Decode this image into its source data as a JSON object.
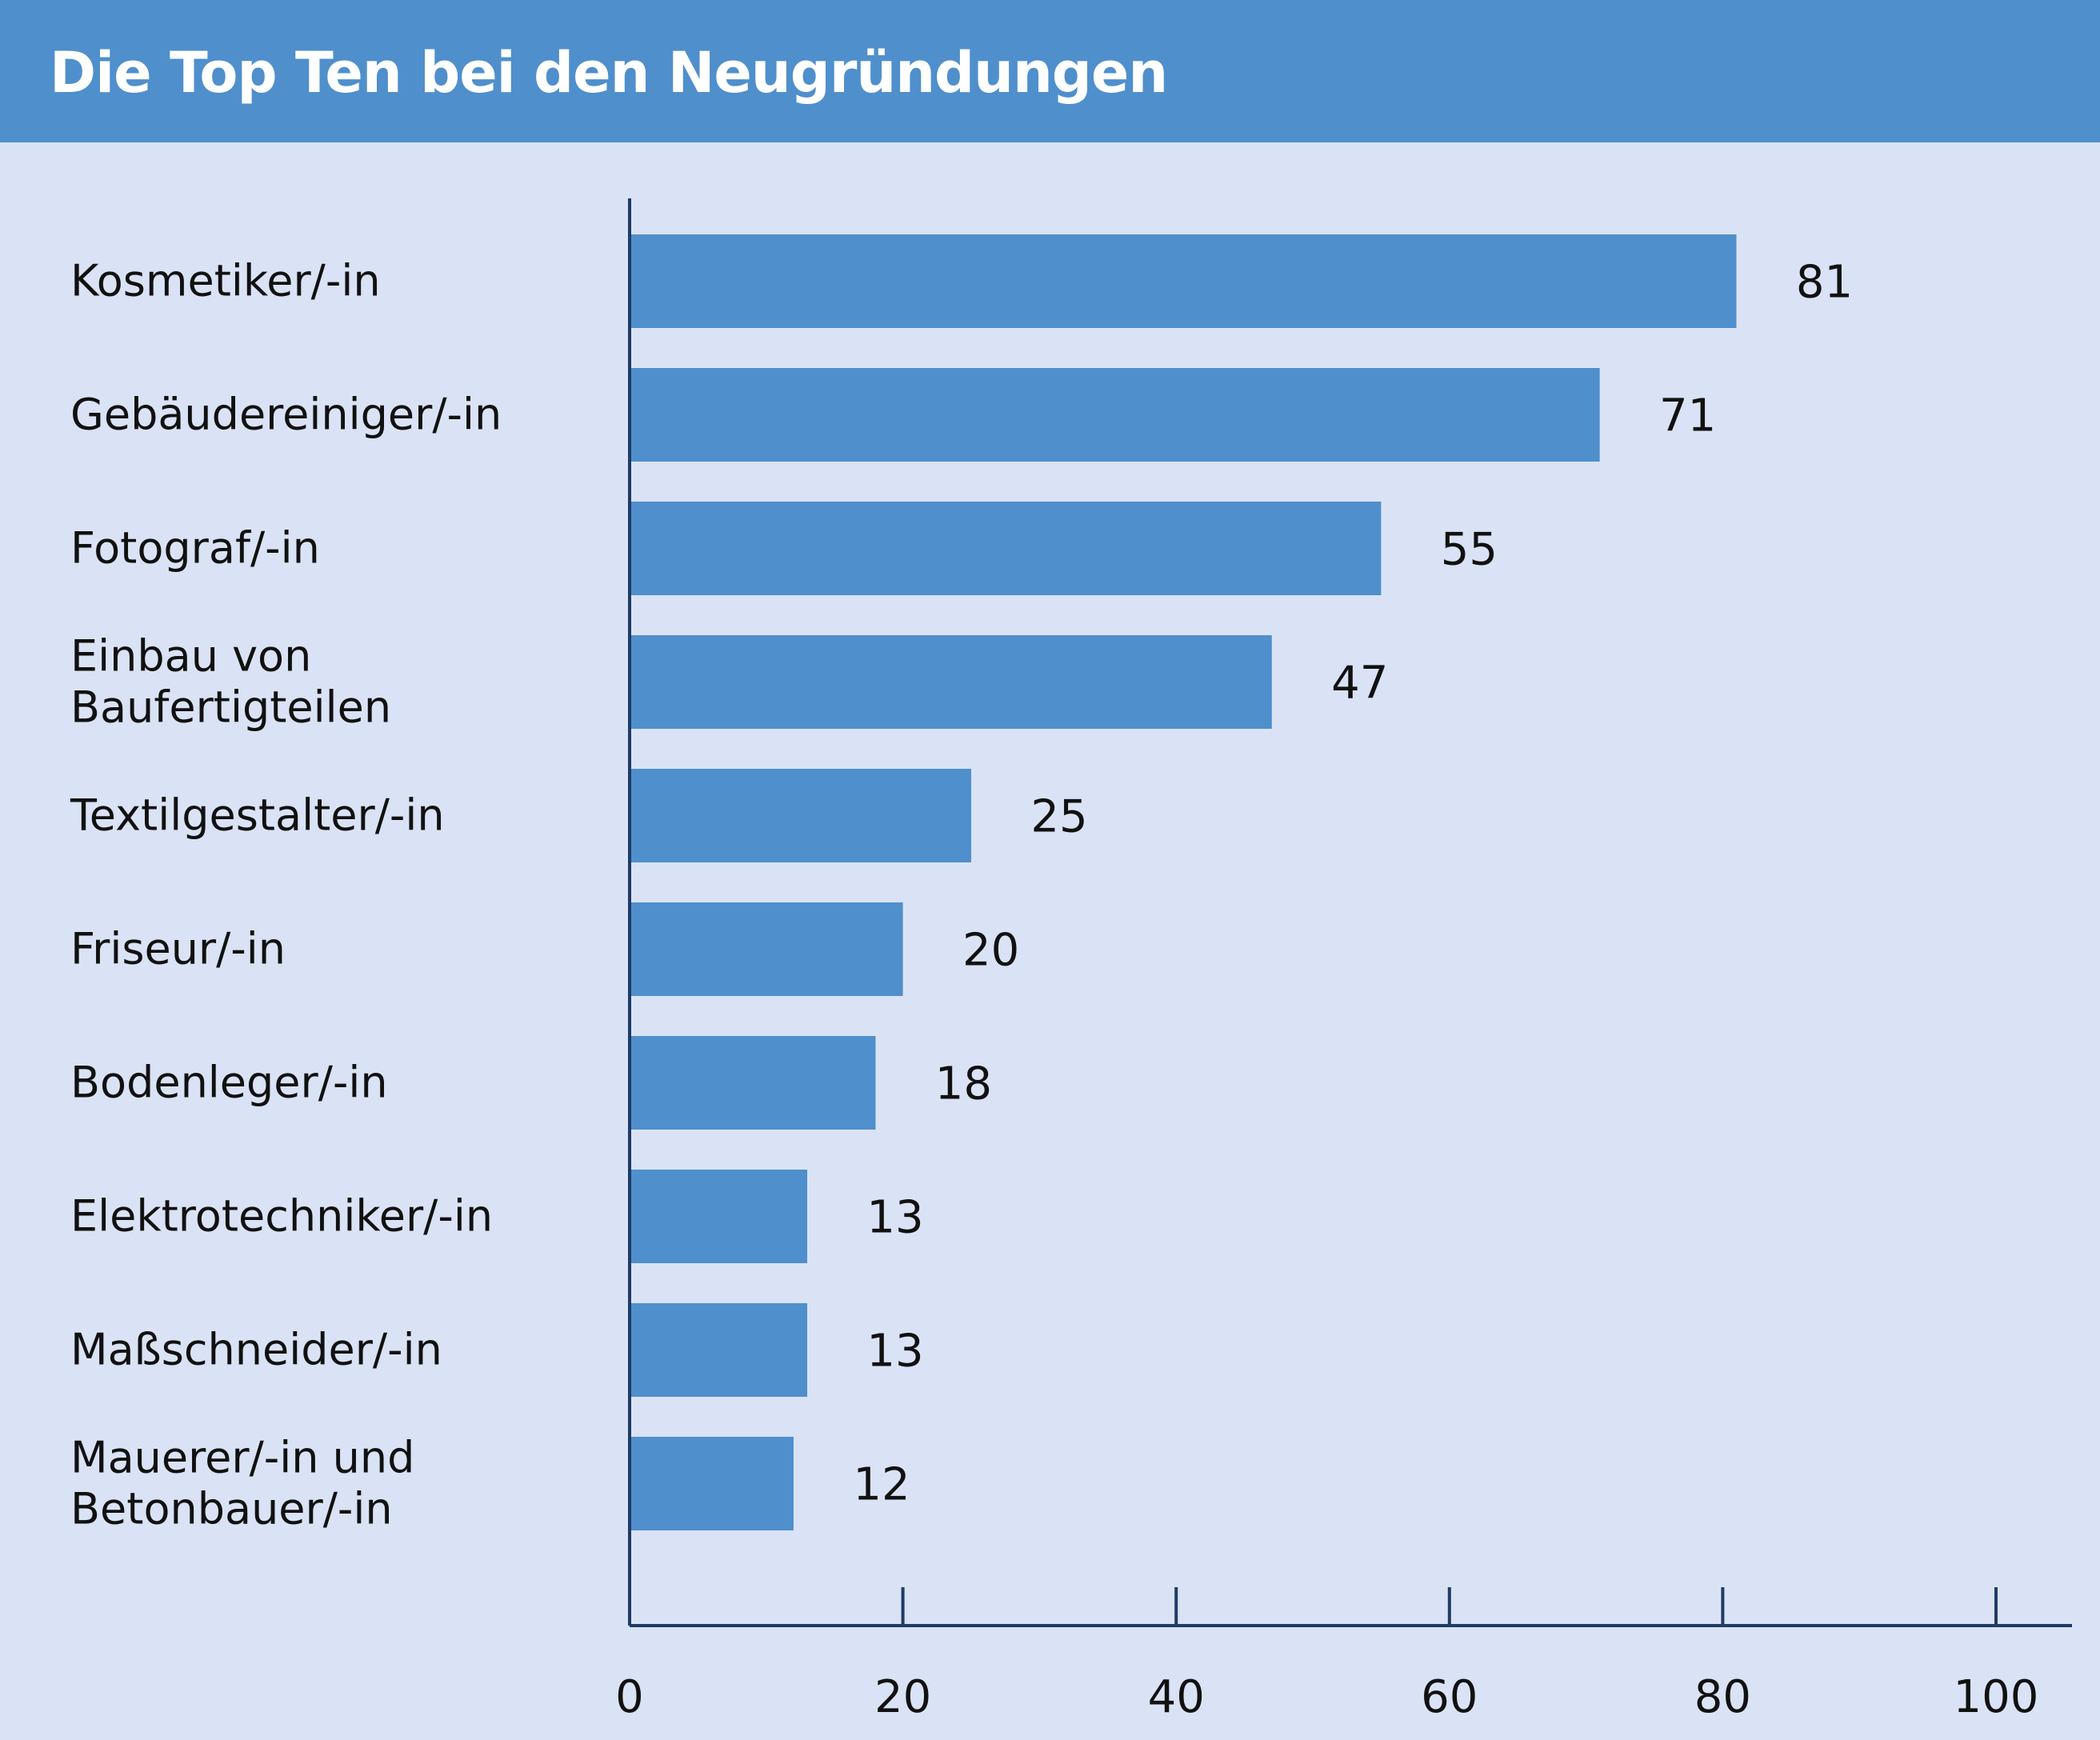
{
  "header": {
    "title": "Die Top Ten bei den Neugründungen"
  },
  "colors": {
    "header_bg": "#4f8fcc",
    "bar": "#4f8fcc",
    "background": "#dae3f5",
    "axis": "#1f3b66"
  },
  "chart_data": {
    "type": "bar",
    "orientation": "horizontal",
    "title": "Die Top Ten bei den Neugründungen",
    "categories": [
      [
        "Kosmetiker/-in"
      ],
      [
        "Gebäudereiniger/-in"
      ],
      [
        "Fotograf/-in"
      ],
      [
        "Einbau von",
        "Baufertigteilen"
      ],
      [
        "Textilgestalter/-in"
      ],
      [
        "Friseur/-in"
      ],
      [
        "Bodenleger/-in"
      ],
      [
        "Elektrotechniker/-in"
      ],
      [
        "Maßschneider/-in"
      ],
      [
        "Mauerer/-in und",
        "Betonbauer/-in"
      ]
    ],
    "values": [
      81,
      71,
      55,
      47,
      25,
      20,
      18,
      13,
      13,
      12
    ],
    "xlim": [
      0,
      105
    ],
    "xticks": [
      0,
      20,
      40,
      60,
      80,
      100
    ],
    "xlabel": "",
    "ylabel": "",
    "grid": false,
    "legend": "none"
  }
}
